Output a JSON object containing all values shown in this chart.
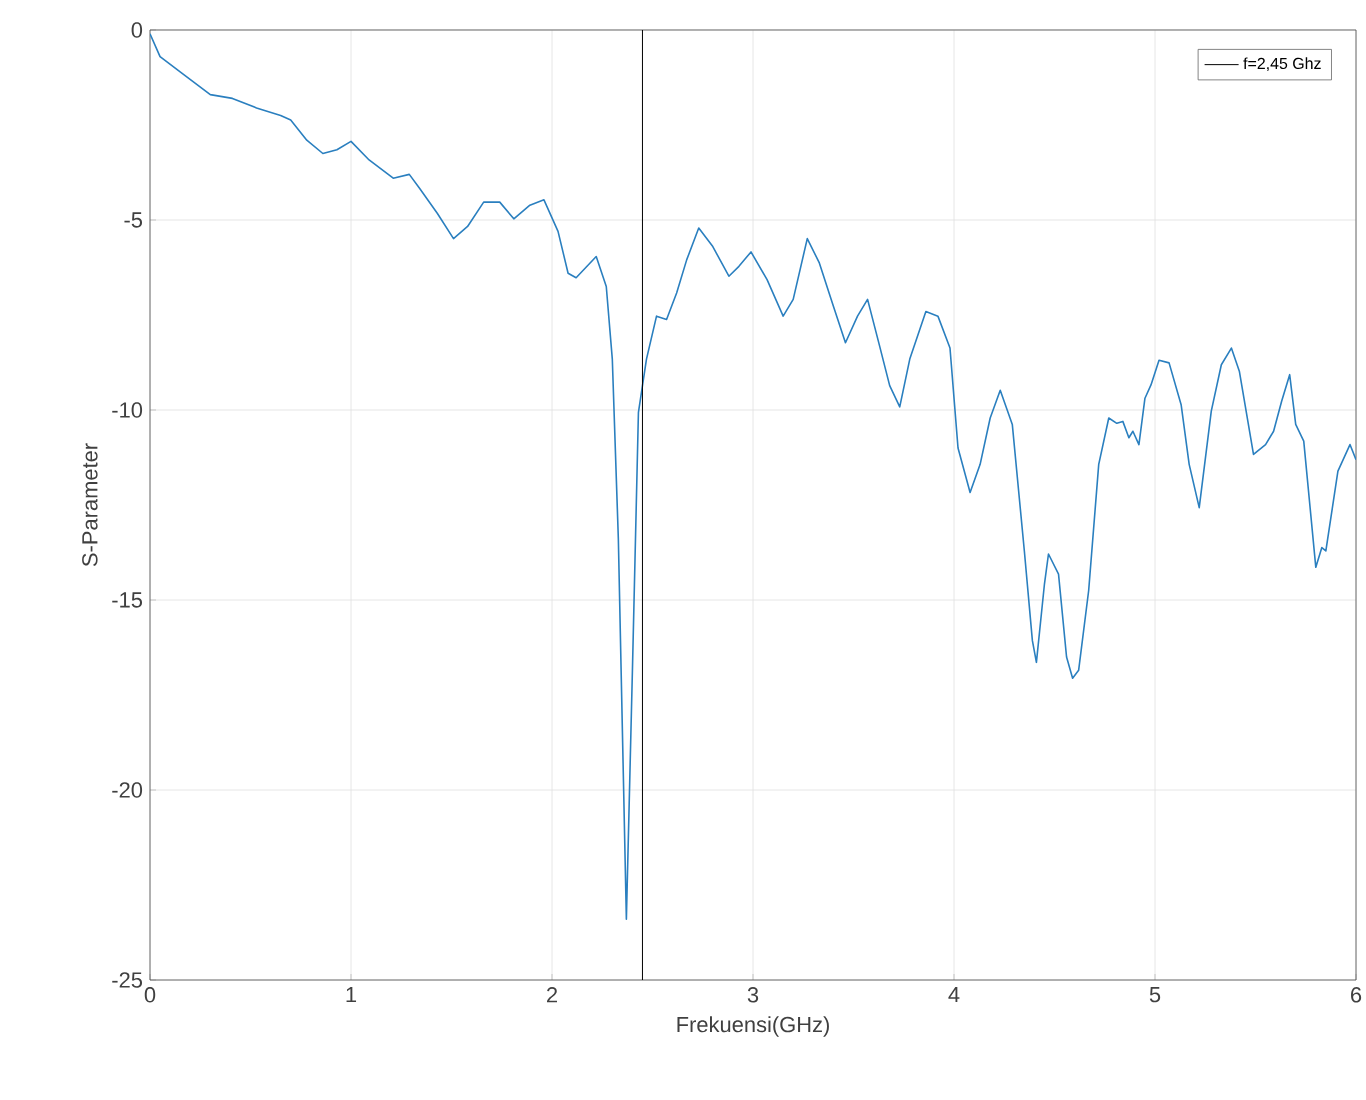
{
  "chart_data": {
    "type": "line",
    "xlabel": "Frekuensi(GHz)",
    "ylabel": "S-Parameter",
    "xlim": [
      0,
      6
    ],
    "ylim": [
      -25,
      0
    ],
    "xticks": [
      0,
      1,
      2,
      3,
      4,
      5,
      6
    ],
    "yticks": [
      -25,
      -20,
      -15,
      -10,
      -5,
      0
    ],
    "grid": true,
    "legend": "top right",
    "marker": "none",
    "line_style": "solid",
    "ref_lines": [
      {
        "axis": "x",
        "value": 2.45,
        "label": "f=2,45 Ghz",
        "color": "#000000",
        "line_style": "solid"
      }
    ],
    "series": [
      {
        "color": "#2a7fbf",
        "x": [
          0,
          0.05,
          0.15,
          0.3,
          0.41,
          0.53,
          0.65,
          0.7,
          0.78,
          0.86,
          0.93,
          1.0,
          1.09,
          1.21,
          1.29,
          1.34,
          1.43,
          1.51,
          1.58,
          1.66,
          1.74,
          1.81,
          1.89,
          1.96,
          2.03,
          2.08,
          2.12,
          2.22,
          2.27,
          2.3,
          2.33,
          2.37,
          2.4,
          2.43,
          2.47,
          2.52,
          2.57,
          2.62,
          2.67,
          2.73,
          2.8,
          2.88,
          2.93,
          2.99,
          3.07,
          3.15,
          3.2,
          3.27,
          3.33,
          3.4,
          3.46,
          3.52,
          3.57,
          3.63,
          3.68,
          3.73,
          3.78,
          3.86,
          3.92,
          3.98,
          4.02,
          4.08,
          4.13,
          4.18,
          4.23,
          4.29,
          4.35,
          4.39,
          4.41,
          4.45,
          4.47,
          4.52,
          4.56,
          4.59,
          4.62,
          4.67,
          4.72,
          4.77,
          4.81,
          4.84,
          4.87,
          4.89,
          4.92,
          4.95,
          4.98,
          5.02,
          5.07,
          5.13,
          5.17,
          5.22,
          5.28,
          5.33,
          5.38,
          5.42,
          5.49,
          5.55,
          5.59,
          5.63,
          5.67,
          5.7,
          5.74,
          5.8,
          5.83,
          5.85,
          5.91,
          5.97,
          6.0
        ],
        "values": [
          -0.1,
          -0.7,
          -1.1,
          -1.7,
          -1.8,
          -2.05,
          -2.25,
          -2.37,
          -2.9,
          -3.25,
          -3.15,
          -2.93,
          -3.42,
          -3.9,
          -3.8,
          -4.16,
          -4.83,
          -5.49,
          -5.17,
          -4.53,
          -4.53,
          -4.97,
          -4.61,
          -4.47,
          -5.3,
          -6.4,
          -6.52,
          -5.96,
          -6.75,
          -8.66,
          -13.38,
          -23.4,
          -16.87,
          -10.06,
          -8.66,
          -7.53,
          -7.62,
          -6.92,
          -6.05,
          -5.21,
          -5.7,
          -6.48,
          -6.22,
          -5.84,
          -6.57,
          -7.53,
          -7.09,
          -5.49,
          -6.13,
          -7.27,
          -8.23,
          -7.53,
          -7.09,
          -8.32,
          -9.36,
          -9.92,
          -8.66,
          -7.41,
          -7.53,
          -8.37,
          -11.0,
          -12.17,
          -11.43,
          -10.21,
          -9.48,
          -10.38,
          -13.71,
          -16.07,
          -16.64,
          -14.58,
          -13.79,
          -14.32,
          -16.5,
          -17.06,
          -16.85,
          -14.75,
          -11.43,
          -10.21,
          -10.35,
          -10.3,
          -10.73,
          -10.56,
          -10.91,
          -9.69,
          -9.34,
          -8.69,
          -8.76,
          -9.86,
          -11.43,
          -12.57,
          -10.03,
          -8.81,
          -8.37,
          -8.99,
          -11.17,
          -10.91,
          -10.56,
          -9.77,
          -9.07,
          -10.38,
          -10.82,
          -14.14,
          -13.62,
          -13.71,
          -11.61,
          -10.91,
          -11.31
        ]
      }
    ]
  }
}
